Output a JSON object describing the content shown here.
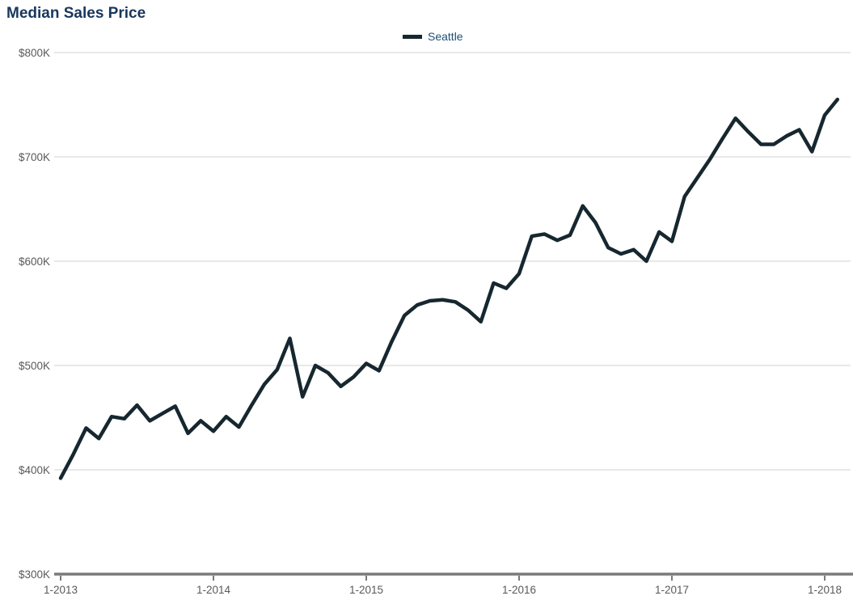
{
  "header": {
    "title": "Median Sales Price"
  },
  "legend": {
    "label": "Seattle"
  },
  "colors": {
    "title_text": "#17375e",
    "legend_text": "#1d4f76",
    "line": "#16272f",
    "gridline": "#d9d9d9",
    "axis_line": "#7a7a7a",
    "tick_label": "#595959"
  },
  "chart_data": {
    "type": "line",
    "title": "Median Sales Price",
    "x": [
      "1-2013",
      "2-2013",
      "3-2013",
      "4-2013",
      "5-2013",
      "6-2013",
      "7-2013",
      "8-2013",
      "9-2013",
      "10-2013",
      "11-2013",
      "12-2013",
      "1-2014",
      "2-2014",
      "3-2014",
      "4-2014",
      "5-2014",
      "6-2014",
      "7-2014",
      "8-2014",
      "9-2014",
      "10-2014",
      "11-2014",
      "12-2014",
      "1-2015",
      "2-2015",
      "3-2015",
      "4-2015",
      "5-2015",
      "6-2015",
      "7-2015",
      "8-2015",
      "9-2015",
      "10-2015",
      "11-2015",
      "12-2015",
      "1-2016",
      "2-2016",
      "3-2016",
      "4-2016",
      "5-2016",
      "6-2016",
      "7-2016",
      "8-2016",
      "9-2016",
      "10-2016",
      "11-2016",
      "12-2016",
      "1-2017",
      "2-2017",
      "3-2017",
      "4-2017",
      "5-2017",
      "6-2017",
      "7-2017",
      "8-2017",
      "9-2017",
      "10-2017",
      "11-2017",
      "12-2017",
      "1-2018",
      "2-2018"
    ],
    "series": [
      {
        "name": "Seattle",
        "values_in_thousands_usd": [
          392,
          415,
          440,
          430,
          451,
          449,
          462,
          447,
          454,
          461,
          435,
          447,
          437,
          451,
          441,
          462,
          482,
          496,
          526,
          470,
          500,
          493,
          480,
          489,
          502,
          495,
          523,
          548,
          558,
          562,
          563,
          561,
          553,
          542,
          579,
          574,
          588,
          624,
          626,
          620,
          625,
          653,
          637,
          613,
          607,
          611,
          600,
          628,
          619,
          662,
          680,
          698,
          718,
          737,
          724,
          712,
          712,
          720,
          726,
          705,
          740,
          755
        ]
      }
    ],
    "x_tick_labels": [
      "1-2013",
      "1-2014",
      "1-2015",
      "1-2016",
      "1-2017",
      "1-2018"
    ],
    "y_tick_labels": [
      "$800K",
      "$700K",
      "$600K",
      "$500K",
      "$400K",
      "$300K"
    ],
    "y_tick_values_thousands": [
      800,
      700,
      600,
      500,
      400,
      300
    ],
    "ylim_thousands": [
      300,
      800
    ],
    "grid": "horizontal",
    "legend_position": "top-center"
  }
}
